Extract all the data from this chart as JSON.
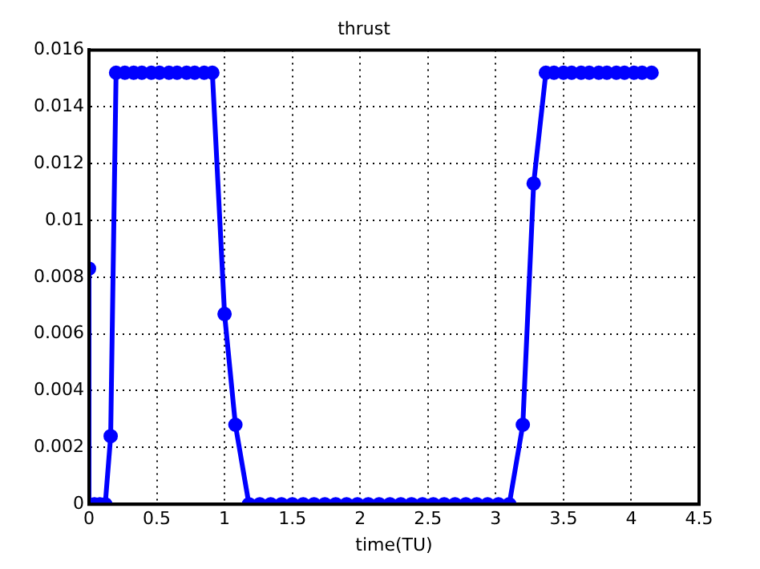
{
  "chart_data": {
    "type": "line",
    "title": "thrust",
    "xlabel": "time(TU)",
    "xlim": [
      0,
      4.5
    ],
    "xticks": [
      0,
      0.5,
      1,
      1.5,
      2,
      2.5,
      3,
      3.5,
      4,
      4.5
    ],
    "ylim": [
      0,
      0.016
    ],
    "yticks": [
      0,
      0.002,
      0.004,
      0.006,
      0.008,
      0.01,
      0.012,
      0.014,
      0.016
    ],
    "grid": true,
    "marker": "circle",
    "line_style": "solid",
    "legend": false,
    "series": [
      {
        "color": "#0000ff",
        "x": [
          0,
          0,
          0.04,
          0.08,
          0.12,
          0.16,
          0.2,
          0.265,
          0.33,
          0.39,
          0.46,
          0.52,
          0.59,
          0.65,
          0.72,
          0.78,
          0.85,
          0.91,
          1.0,
          1.08,
          1.18,
          1.26,
          1.34,
          1.42,
          1.5,
          1.58,
          1.66,
          1.74,
          1.82,
          1.9,
          1.98,
          2.06,
          2.14,
          2.22,
          2.3,
          2.38,
          2.46,
          2.54,
          2.62,
          2.7,
          2.78,
          2.86,
          2.94,
          3.02,
          3.1,
          3.2,
          3.28,
          3.37,
          3.43,
          3.5,
          3.56,
          3.63,
          3.69,
          3.76,
          3.82,
          3.89,
          3.95,
          4.02,
          4.08,
          4.15
        ],
        "values": [
          0.0083,
          0,
          0,
          0,
          0,
          0.0024,
          0.0152,
          0.0152,
          0.0152,
          0.0152,
          0.0152,
          0.0152,
          0.0152,
          0.0152,
          0.0152,
          0.0152,
          0.0152,
          0.0152,
          0.0067,
          0.0028,
          0,
          0,
          0,
          0,
          0,
          0,
          0,
          0,
          0,
          0,
          0,
          0,
          0,
          0,
          0,
          0,
          0,
          0,
          0,
          0,
          0,
          0,
          0,
          0,
          0,
          0.0028,
          0.0113,
          0.0152,
          0.0152,
          0.0152,
          0.0152,
          0.0152,
          0.0152,
          0.0152,
          0.0152,
          0.0152,
          0.0152,
          0.0152,
          0.0152,
          0.0152
        ]
      }
    ]
  }
}
